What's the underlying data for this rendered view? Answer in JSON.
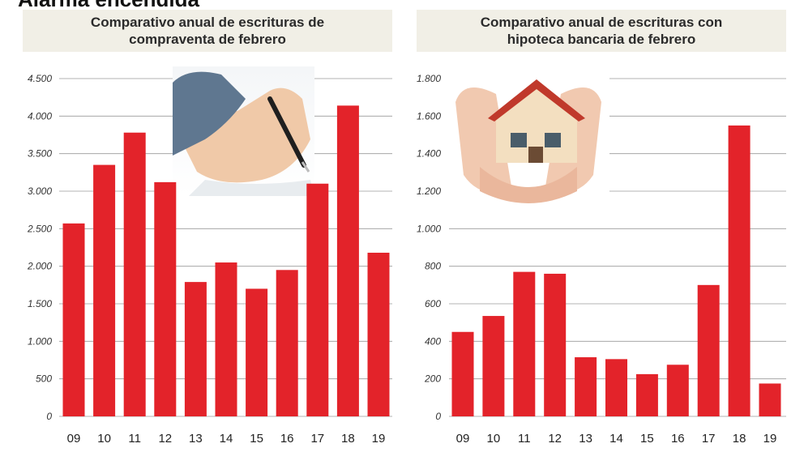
{
  "headline": "Alarma encendida",
  "colors": {
    "bar": "#e3232a",
    "grid": "#9a9a9a",
    "title_bg": "#f1efe6"
  },
  "illustrations": {
    "left": "hand-writing-pen-icon",
    "right": "hands-holding-house-icon"
  },
  "chart_data": [
    {
      "type": "bar",
      "title": "Comparativo anual de escrituras de compraventa de febrero",
      "categories": [
        "09",
        "10",
        "11",
        "12",
        "13",
        "14",
        "15",
        "16",
        "17",
        "18",
        "19"
      ],
      "values": [
        2570,
        3350,
        3780,
        3120,
        1790,
        2050,
        1700,
        1950,
        3100,
        4140,
        2180
      ],
      "ylim": [
        0,
        4500
      ],
      "yticks": [
        0,
        500,
        1000,
        1500,
        2000,
        2500,
        3000,
        3500,
        4000,
        4500
      ],
      "ytick_labels": [
        "0",
        "500",
        "1.000",
        "1.500",
        "2.000",
        "2.500",
        "3.000",
        "3.500",
        "4.000",
        "4.500"
      ],
      "grid": true
    },
    {
      "type": "bar",
      "title": "Comparativo anual de escrituras con hipoteca bancaria de febrero",
      "categories": [
        "09",
        "10",
        "11",
        "12",
        "13",
        "14",
        "15",
        "16",
        "17",
        "18",
        "19"
      ],
      "values": [
        450,
        535,
        770,
        760,
        315,
        305,
        225,
        275,
        700,
        1550,
        175
      ],
      "ylim": [
        0,
        1800
      ],
      "yticks": [
        0,
        200,
        400,
        600,
        800,
        1000,
        1200,
        1400,
        1600,
        1800
      ],
      "ytick_labels": [
        "0",
        "200",
        "400",
        "600",
        "800",
        "1.000",
        "1.200",
        "1.400",
        "1.600",
        "1.800"
      ],
      "grid": true
    }
  ]
}
